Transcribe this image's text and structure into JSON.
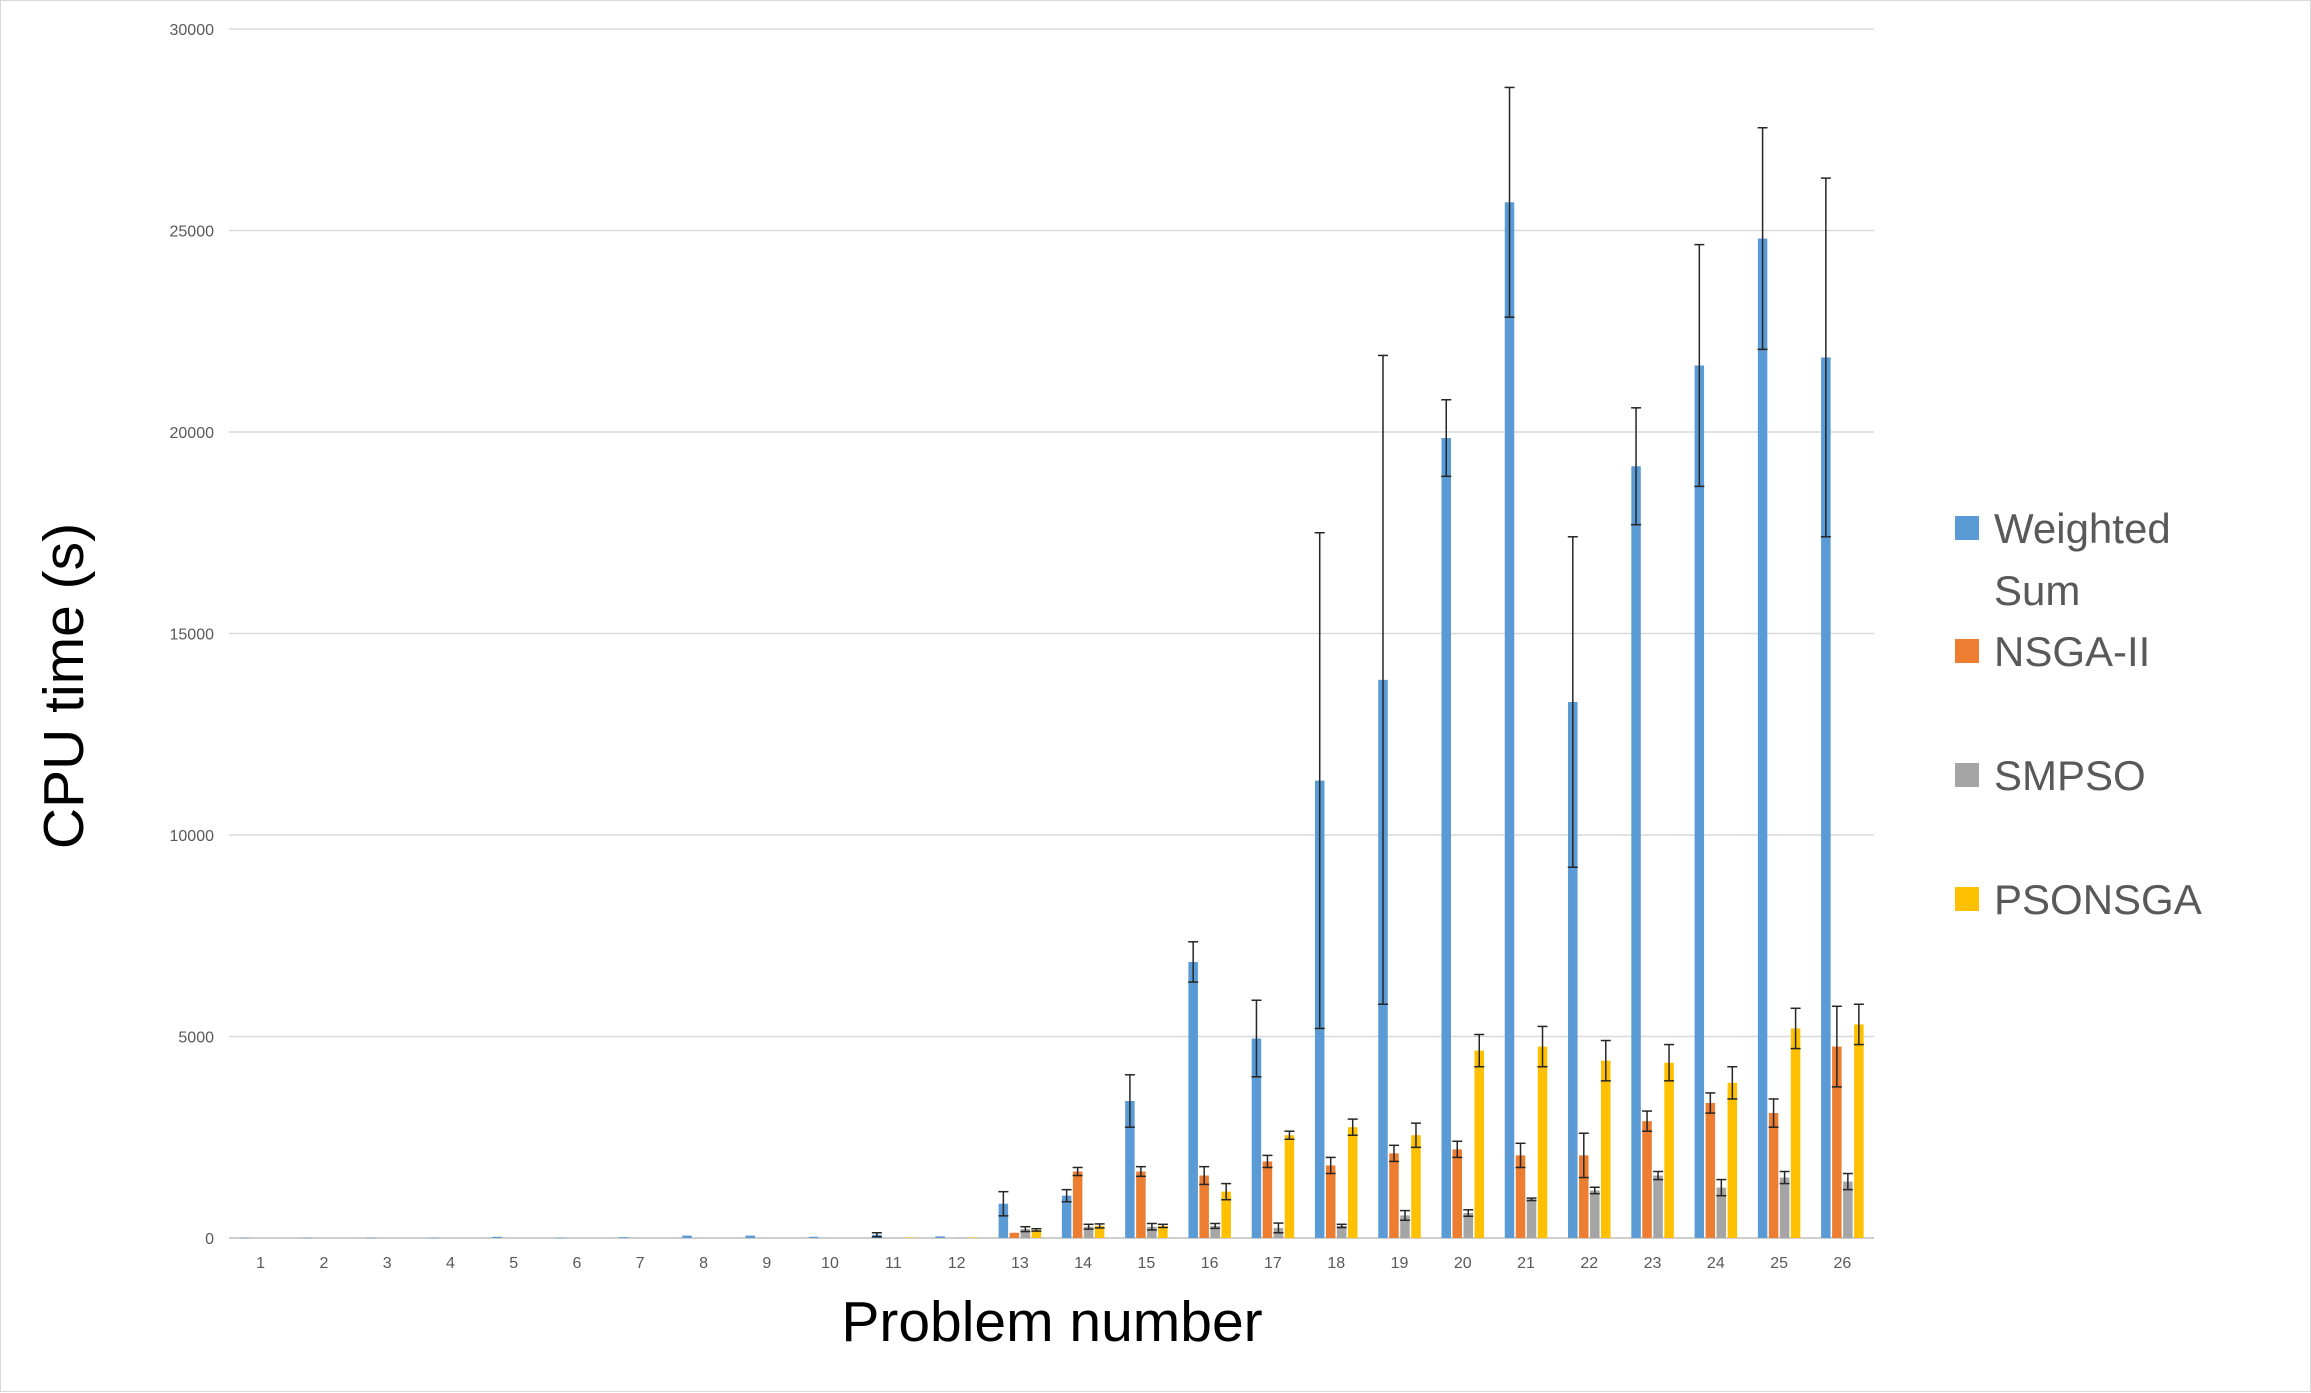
{
  "chart_data": {
    "type": "bar",
    "title": "",
    "xlabel": "Problem number",
    "ylabel": "CPU time (s)",
    "ylim": [
      0,
      30000
    ],
    "yticks": [
      0,
      5000,
      10000,
      15000,
      20000,
      25000,
      30000
    ],
    "grid": "horizontal",
    "legend_position": "right",
    "error_bars": true,
    "categories": [
      "1",
      "2",
      "3",
      "4",
      "5",
      "6",
      "7",
      "8",
      "9",
      "10",
      "11",
      "12",
      "13",
      "14",
      "15",
      "16",
      "17",
      "18",
      "19",
      "20",
      "21",
      "22",
      "23",
      "24",
      "25",
      "26"
    ],
    "series": [
      {
        "name": "Weighted Sum",
        "color": "#5B9BD5",
        "values": [
          5,
          5,
          5,
          5,
          30,
          5,
          20,
          60,
          60,
          30,
          80,
          40,
          850,
          1050,
          3400,
          6850,
          4950,
          11350,
          13850,
          19850,
          25700,
          13300,
          19150,
          21650,
          24800,
          21850
        ],
        "errors": [
          0,
          0,
          0,
          0,
          0,
          0,
          0,
          0,
          0,
          0,
          50,
          0,
          300,
          150,
          650,
          500,
          950,
          6150,
          8050,
          950,
          2850,
          4100,
          1450,
          3000,
          2750,
          4450
        ]
      },
      {
        "name": "NSGA-II",
        "color": "#ED7D31",
        "values": [
          0,
          0,
          0,
          0,
          0,
          0,
          0,
          0,
          0,
          0,
          0,
          0,
          130,
          1650,
          1650,
          1550,
          1900,
          1800,
          2100,
          2200,
          2050,
          2050,
          2900,
          3350,
          3100,
          4750
        ],
        "errors": [
          0,
          0,
          0,
          0,
          0,
          0,
          0,
          0,
          0,
          0,
          0,
          0,
          0,
          100,
          120,
          220,
          150,
          200,
          200,
          200,
          300,
          550,
          250,
          250,
          350,
          1000
        ]
      },
      {
        "name": "SMPSO",
        "color": "#A5A5A5",
        "values": [
          0,
          0,
          0,
          0,
          0,
          0,
          0,
          0,
          0,
          0,
          0,
          10,
          220,
          280,
          280,
          300,
          250,
          300,
          560,
          620,
          960,
          1180,
          1550,
          1250,
          1500,
          1400
        ],
        "errors": [
          0,
          0,
          0,
          0,
          0,
          0,
          0,
          0,
          0,
          0,
          0,
          0,
          60,
          60,
          80,
          60,
          120,
          40,
          120,
          80,
          30,
          80,
          100,
          200,
          150,
          200
        ]
      },
      {
        "name": "PSONSGA",
        "color": "#FFC000",
        "values": [
          0,
          0,
          0,
          0,
          0,
          0,
          0,
          0,
          0,
          0,
          10,
          10,
          200,
          300,
          300,
          1150,
          2550,
          2750,
          2550,
          4650,
          4750,
          4400,
          4350,
          3850,
          5200,
          5300
        ],
        "errors": [
          0,
          0,
          0,
          0,
          0,
          0,
          0,
          0,
          0,
          0,
          0,
          0,
          30,
          50,
          40,
          200,
          100,
          200,
          300,
          400,
          500,
          500,
          450,
          400,
          500,
          500
        ]
      }
    ]
  }
}
